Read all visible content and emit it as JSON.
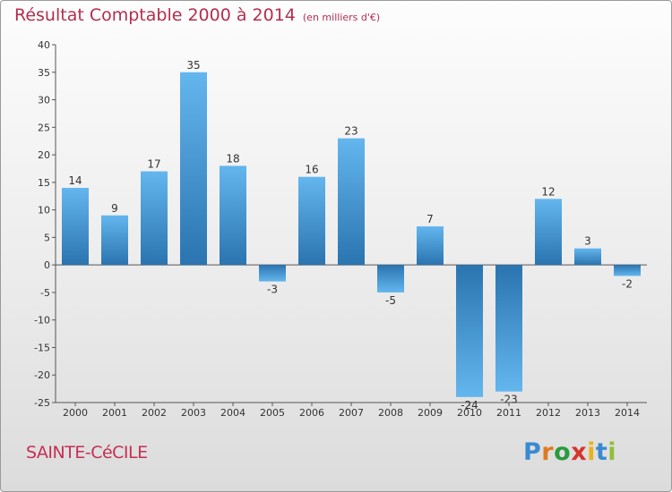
{
  "header": {
    "title": "Résultat Comptable 2000 à 2014",
    "unit": "(en milliers d'€)"
  },
  "footer": {
    "commune": "SAINTE-CéCILE",
    "brand": "Proxiti"
  },
  "colors": {
    "title": "#b32e4f",
    "bar_light": "#62b4ec",
    "bar_dark": "#2a74b0",
    "axis": "#555555",
    "brand_letters": [
      "#3a8ad0",
      "#e07a22",
      "#2a9a3e",
      "#d4352b",
      "#e8b31d",
      "#3a8ad0",
      "#8fbf3a"
    ]
  },
  "chart_data": {
    "type": "bar",
    "title": "Résultat Comptable 2000 à 2014",
    "subtitle": "(en milliers d'€)",
    "xlabel": "",
    "ylabel": "",
    "categories": [
      "2000",
      "2001",
      "2002",
      "2003",
      "2004",
      "2005",
      "2006",
      "2007",
      "2008",
      "2009",
      "2010",
      "2011",
      "2012",
      "2013",
      "2014"
    ],
    "values": [
      14,
      9,
      17,
      35,
      18,
      -3,
      16,
      23,
      -5,
      7,
      -24,
      -23,
      12,
      3,
      -2
    ],
    "ylim": [
      -25,
      40
    ],
    "yticks": [
      40,
      35,
      30,
      25,
      20,
      15,
      10,
      5,
      0,
      -5,
      -10,
      -15,
      -20,
      -25
    ],
    "grid": false,
    "legend": "none"
  }
}
